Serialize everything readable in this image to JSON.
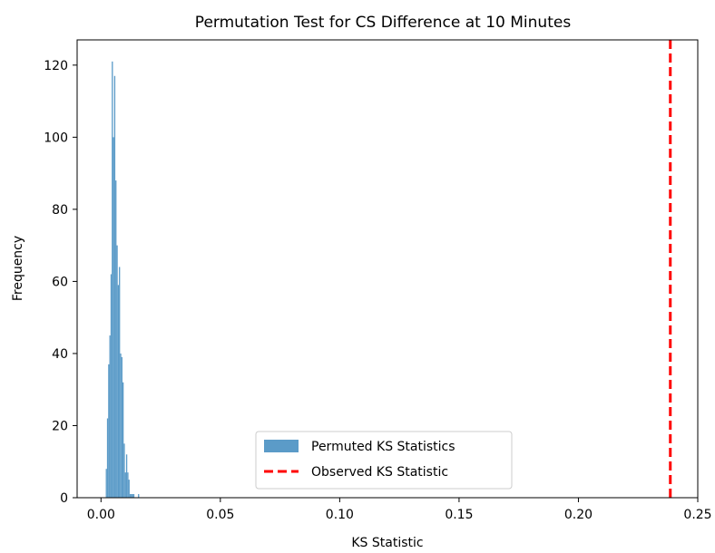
{
  "chart_data": {
    "type": "bar",
    "title": "Permutation Test for CS Difference at 10 Minutes",
    "xlabel": "KS Statistic",
    "ylabel": "Frequency",
    "xlim": [
      -0.01,
      0.25
    ],
    "ylim": [
      0,
      127
    ],
    "xticks": [
      "0.00",
      "0.05",
      "0.10",
      "0.15",
      "0.20",
      "0.25"
    ],
    "yticks": [
      "0",
      "20",
      "40",
      "60",
      "80",
      "100",
      "120"
    ],
    "grid": false,
    "legend_position": "lower center",
    "series": [
      {
        "name": "Permuted KS Statistics",
        "kind": "histogram",
        "color": "#5b9bc8",
        "bin_width": 0.0005,
        "bins": [
          [
            0.002,
            8
          ],
          [
            0.0025,
            22
          ],
          [
            0.003,
            37
          ],
          [
            0.0035,
            45
          ],
          [
            0.004,
            62
          ],
          [
            0.0045,
            121
          ],
          [
            0.005,
            100
          ],
          [
            0.0055,
            117
          ],
          [
            0.006,
            88
          ],
          [
            0.0065,
            70
          ],
          [
            0.007,
            59
          ],
          [
            0.0075,
            64
          ],
          [
            0.008,
            40
          ],
          [
            0.0085,
            39
          ],
          [
            0.009,
            32
          ],
          [
            0.0095,
            15
          ],
          [
            0.01,
            7
          ],
          [
            0.0105,
            12
          ],
          [
            0.011,
            7
          ],
          [
            0.0115,
            5
          ],
          [
            0.012,
            1
          ],
          [
            0.0125,
            1
          ],
          [
            0.013,
            1
          ],
          [
            0.0135,
            1
          ],
          [
            0.0155,
            1
          ]
        ]
      },
      {
        "name": "Observed KS Statistic",
        "kind": "vline",
        "color": "#ff0000",
        "style": "dashed",
        "x": 0.2385
      }
    ]
  }
}
